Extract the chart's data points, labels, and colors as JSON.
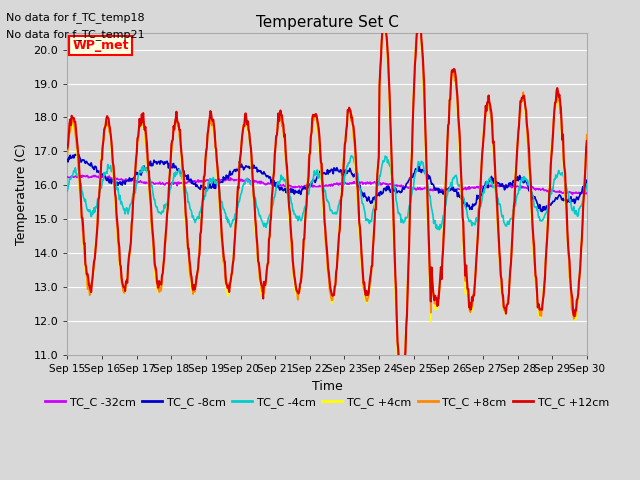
{
  "title": "Temperature Set C",
  "xlabel": "Time",
  "ylabel": "Temperature (C)",
  "ylim": [
    11.0,
    20.5
  ],
  "yticks": [
    11.0,
    12.0,
    13.0,
    14.0,
    15.0,
    16.0,
    17.0,
    18.0,
    19.0,
    20.0
  ],
  "note_line1": "No data for f_TC_temp18",
  "note_line2": "No data for f_TC_temp21",
  "wp_met_label": "WP_met",
  "legend_labels": [
    "TC_C -32cm",
    "TC_C -8cm",
    "TC_C -4cm",
    "TC_C +4cm",
    "TC_C +8cm",
    "TC_C +12cm"
  ],
  "line_colors": [
    "#cc00ff",
    "#0000cc",
    "#00cccc",
    "#ffff00",
    "#ff8800",
    "#dd0000"
  ],
  "line_widths": [
    1.2,
    1.2,
    1.2,
    1.2,
    1.2,
    1.5
  ],
  "background_color": "#d8d8d8",
  "plot_bg_color": "#d8d8d8",
  "grid_color": "#ffffff",
  "n_points": 720,
  "xtick_days": [
    15,
    16,
    17,
    18,
    19,
    20,
    21,
    22,
    23,
    24,
    25,
    26,
    27,
    28,
    29,
    30
  ]
}
